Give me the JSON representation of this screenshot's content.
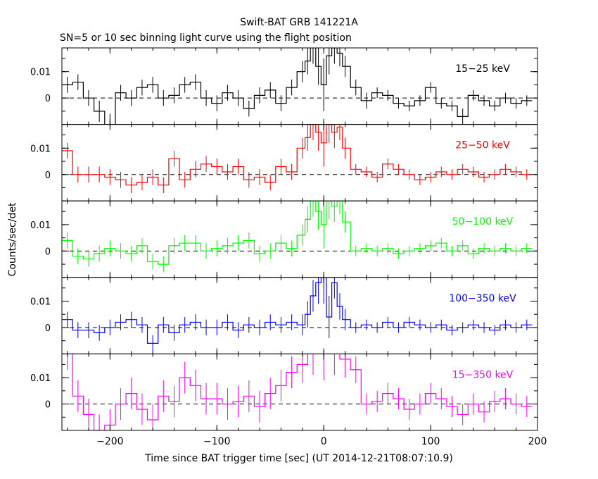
{
  "chart_data": {
    "type": "line",
    "title": "Swift-BAT GRB 141221A",
    "subtitle": "SN=5 or 10 sec binning light curve using the flight position",
    "xlabel": "Time since BAT trigger time [sec] (UT 2014-12-21T08:07:10.9)",
    "ylabel": "Counts/sec/det",
    "xlim": [
      -245,
      200
    ],
    "ylim": [
      -0.01,
      0.019
    ],
    "x_ticks": [
      "−200",
      "−100",
      "0",
      "100",
      "200"
    ],
    "x_tick_values": [
      -200,
      -100,
      0,
      100,
      200
    ],
    "y_ticks": [
      "0.01",
      "0"
    ],
    "y_tick_values": [
      0.01,
      0
    ],
    "zero_line": "dashed",
    "colors": {
      "15-25": "#000000",
      "25-50": "#ff0000",
      "50-100": "#00ff00",
      "100-350": "#0000ff",
      "15-350": "#ff00ff",
      "axes": "#000000"
    },
    "panels": [
      {
        "name": "15−25 keV",
        "color": "#000000",
        "x": [
          -240,
          -230,
          -220,
          -210,
          -200,
          -190,
          -180,
          -170,
          -160,
          -150,
          -140,
          -130,
          -120,
          -110,
          -100,
          -90,
          -80,
          -70,
          -60,
          -50,
          -40,
          -30,
          -20,
          -15,
          -10,
          -5,
          0,
          5,
          10,
          15,
          20,
          30,
          40,
          50,
          60,
          70,
          80,
          90,
          100,
          110,
          120,
          130,
          140,
          150,
          160,
          170,
          180,
          190
        ],
        "y": [
          0.005,
          0.006,
          0.0,
          -0.005,
          -0.01,
          0.002,
          0.0,
          0.004,
          0.005,
          0.0,
          0.001,
          0.005,
          0.006,
          0.0,
          -0.002,
          0.002,
          0.0,
          -0.004,
          0.001,
          0.003,
          -0.002,
          0.004,
          0.01,
          0.014,
          0.019,
          0.012,
          0.005,
          0.016,
          0.019,
          0.017,
          0.012,
          0.004,
          -0.001,
          0.002,
          0.001,
          -0.002,
          -0.003,
          -0.001,
          0.004,
          -0.002,
          -0.003,
          -0.007,
          0.001,
          -0.001,
          -0.003,
          0.0,
          -0.002,
          -0.001
        ],
        "err": [
          0.003,
          0.003,
          0.003,
          0.004,
          0.004,
          0.003,
          0.003,
          0.003,
          0.003,
          0.003,
          0.003,
          0.003,
          0.003,
          0.003,
          0.003,
          0.003,
          0.003,
          0.003,
          0.003,
          0.003,
          0.003,
          0.003,
          0.004,
          0.005,
          0.006,
          0.007,
          0.01,
          0.007,
          0.006,
          0.005,
          0.004,
          0.003,
          0.003,
          0.002,
          0.002,
          0.002,
          0.002,
          0.002,
          0.002,
          0.002,
          0.002,
          0.003,
          0.002,
          0.002,
          0.002,
          0.002,
          0.002,
          0.002
        ]
      },
      {
        "name": "25−50 keV",
        "color": "#ff0000",
        "x": [
          -240,
          -230,
          -220,
          -210,
          -200,
          -190,
          -180,
          -170,
          -160,
          -150,
          -140,
          -130,
          -120,
          -110,
          -100,
          -90,
          -80,
          -70,
          -60,
          -50,
          -40,
          -30,
          -20,
          -15,
          -10,
          -5,
          0,
          5,
          10,
          15,
          20,
          30,
          40,
          50,
          60,
          70,
          80,
          90,
          100,
          110,
          120,
          130,
          140,
          150,
          160,
          170,
          180,
          190
        ],
        "y": [
          0.009,
          0.0,
          0.0,
          0.0,
          -0.001,
          -0.002,
          -0.004,
          -0.003,
          -0.001,
          -0.004,
          0.006,
          -0.002,
          0.002,
          0.004,
          0.003,
          0.001,
          0.003,
          -0.002,
          -0.001,
          -0.003,
          0.003,
          0.001,
          0.01,
          0.014,
          0.019,
          0.016,
          0.012,
          0.019,
          0.016,
          0.018,
          0.01,
          0.002,
          0.001,
          -0.001,
          0.004,
          0.002,
          0.0,
          -0.002,
          -0.001,
          0.001,
          0.0,
          0.002,
          0.001,
          -0.001,
          0.0,
          0.002,
          0.001,
          0.0
        ],
        "err": [
          0.003,
          0.003,
          0.003,
          0.003,
          0.003,
          0.003,
          0.003,
          0.003,
          0.003,
          0.003,
          0.003,
          0.003,
          0.003,
          0.003,
          0.003,
          0.003,
          0.003,
          0.003,
          0.003,
          0.003,
          0.003,
          0.003,
          0.004,
          0.005,
          0.006,
          0.007,
          0.009,
          0.007,
          0.006,
          0.005,
          0.004,
          0.002,
          0.002,
          0.002,
          0.002,
          0.002,
          0.002,
          0.002,
          0.002,
          0.002,
          0.002,
          0.002,
          0.002,
          0.002,
          0.002,
          0.002,
          0.002,
          0.002
        ]
      },
      {
        "name": "50−100 keV",
        "color": "#00ff00",
        "x": [
          -240,
          -230,
          -220,
          -210,
          -200,
          -190,
          -180,
          -170,
          -160,
          -150,
          -140,
          -130,
          -120,
          -110,
          -100,
          -90,
          -80,
          -70,
          -60,
          -50,
          -40,
          -30,
          -20,
          -15,
          -10,
          -5,
          0,
          5,
          10,
          15,
          20,
          30,
          40,
          50,
          60,
          70,
          80,
          90,
          100,
          110,
          120,
          130,
          140,
          150,
          160,
          170,
          180,
          190
        ],
        "y": [
          0.004,
          -0.002,
          -0.003,
          -0.001,
          0.001,
          0.0,
          -0.001,
          0.002,
          -0.004,
          -0.005,
          0.002,
          0.003,
          0.003,
          0.0,
          0.001,
          0.002,
          0.003,
          0.004,
          -0.001,
          0.0,
          0.003,
          0.001,
          0.006,
          0.012,
          0.019,
          0.015,
          0.01,
          0.019,
          0.017,
          0.019,
          0.011,
          0.0,
          0.001,
          0.0,
          0.001,
          -0.001,
          0.0,
          0.001,
          0.002,
          0.003,
          0.0,
          0.002,
          -0.001,
          0.001,
          0.0,
          0.001,
          0.0,
          0.001
        ],
        "err": [
          0.003,
          0.003,
          0.003,
          0.003,
          0.003,
          0.003,
          0.003,
          0.003,
          0.003,
          0.003,
          0.003,
          0.003,
          0.003,
          0.003,
          0.003,
          0.003,
          0.003,
          0.003,
          0.003,
          0.003,
          0.003,
          0.003,
          0.004,
          0.005,
          0.006,
          0.007,
          0.009,
          0.007,
          0.006,
          0.005,
          0.004,
          0.002,
          0.002,
          0.002,
          0.002,
          0.002,
          0.002,
          0.002,
          0.002,
          0.002,
          0.002,
          0.002,
          0.002,
          0.002,
          0.002,
          0.002,
          0.002,
          0.002
        ]
      },
      {
        "name": "100−350 keV",
        "color": "#0000ff",
        "x": [
          -240,
          -230,
          -220,
          -210,
          -200,
          -190,
          -180,
          -170,
          -160,
          -150,
          -140,
          -130,
          -120,
          -110,
          -100,
          -90,
          -80,
          -70,
          -60,
          -50,
          -40,
          -30,
          -20,
          -15,
          -10,
          -5,
          0,
          5,
          10,
          15,
          20,
          30,
          40,
          50,
          60,
          70,
          80,
          90,
          100,
          110,
          120,
          130,
          140,
          150,
          160,
          170,
          180,
          190
        ],
        "y": [
          0.003,
          -0.001,
          -0.001,
          -0.002,
          0.0,
          0.002,
          0.003,
          0.001,
          -0.006,
          0.001,
          -0.002,
          0.001,
          0.002,
          0.0,
          0.0,
          0.002,
          -0.001,
          0.001,
          0.0,
          0.002,
          0.001,
          0.002,
          0.001,
          0.005,
          0.012,
          0.017,
          0.019,
          0.004,
          0.017,
          0.008,
          0.003,
          0.0,
          0.001,
          0.0,
          0.002,
          0.0,
          0.002,
          0.001,
          0.0,
          0.001,
          -0.001,
          0.0,
          0.001,
          0.0,
          -0.001,
          0.001,
          0.0,
          0.001
        ],
        "err": [
          0.003,
          0.003,
          0.003,
          0.003,
          0.003,
          0.003,
          0.003,
          0.003,
          0.003,
          0.003,
          0.003,
          0.003,
          0.003,
          0.003,
          0.003,
          0.003,
          0.003,
          0.003,
          0.003,
          0.003,
          0.003,
          0.003,
          0.004,
          0.005,
          0.006,
          0.008,
          0.01,
          0.008,
          0.006,
          0.005,
          0.004,
          0.002,
          0.002,
          0.002,
          0.002,
          0.002,
          0.002,
          0.002,
          0.002,
          0.002,
          0.002,
          0.002,
          0.002,
          0.002,
          0.002,
          0.002,
          0.002,
          0.002
        ]
      },
      {
        "name": "15−350 keV",
        "color": "#ff00ff",
        "x": [
          -240,
          -230,
          -220,
          -210,
          -200,
          -190,
          -180,
          -170,
          -160,
          -150,
          -140,
          -130,
          -120,
          -110,
          -100,
          -90,
          -80,
          -70,
          -60,
          -50,
          -40,
          -30,
          -20,
          -10,
          0,
          10,
          20,
          30,
          40,
          50,
          60,
          70,
          80,
          90,
          100,
          110,
          120,
          130,
          140,
          150,
          160,
          170,
          180,
          190
        ],
        "y": [
          0.019,
          0.003,
          -0.004,
          -0.01,
          -0.008,
          0.0,
          0.004,
          -0.002,
          -0.006,
          0.003,
          0.001,
          0.01,
          0.007,
          0.002,
          0.002,
          0.0,
          0.001,
          0.003,
          -0.001,
          0.004,
          0.007,
          0.012,
          0.015,
          0.019,
          0.019,
          0.019,
          0.017,
          0.013,
          0.0,
          0.001,
          0.004,
          0.002,
          -0.002,
          0.0,
          0.004,
          0.002,
          -0.001,
          -0.004,
          0.0,
          -0.003,
          0.001,
          0.002,
          0.0,
          -0.001
        ],
        "err": [
          0.006,
          0.006,
          0.006,
          0.006,
          0.006,
          0.006,
          0.006,
          0.006,
          0.006,
          0.006,
          0.006,
          0.006,
          0.006,
          0.006,
          0.006,
          0.006,
          0.006,
          0.006,
          0.006,
          0.006,
          0.006,
          0.006,
          0.007,
          0.008,
          0.01,
          0.008,
          0.007,
          0.005,
          0.004,
          0.004,
          0.004,
          0.004,
          0.004,
          0.004,
          0.004,
          0.004,
          0.004,
          0.004,
          0.004,
          0.004,
          0.004,
          0.004,
          0.004,
          0.004
        ]
      }
    ]
  }
}
